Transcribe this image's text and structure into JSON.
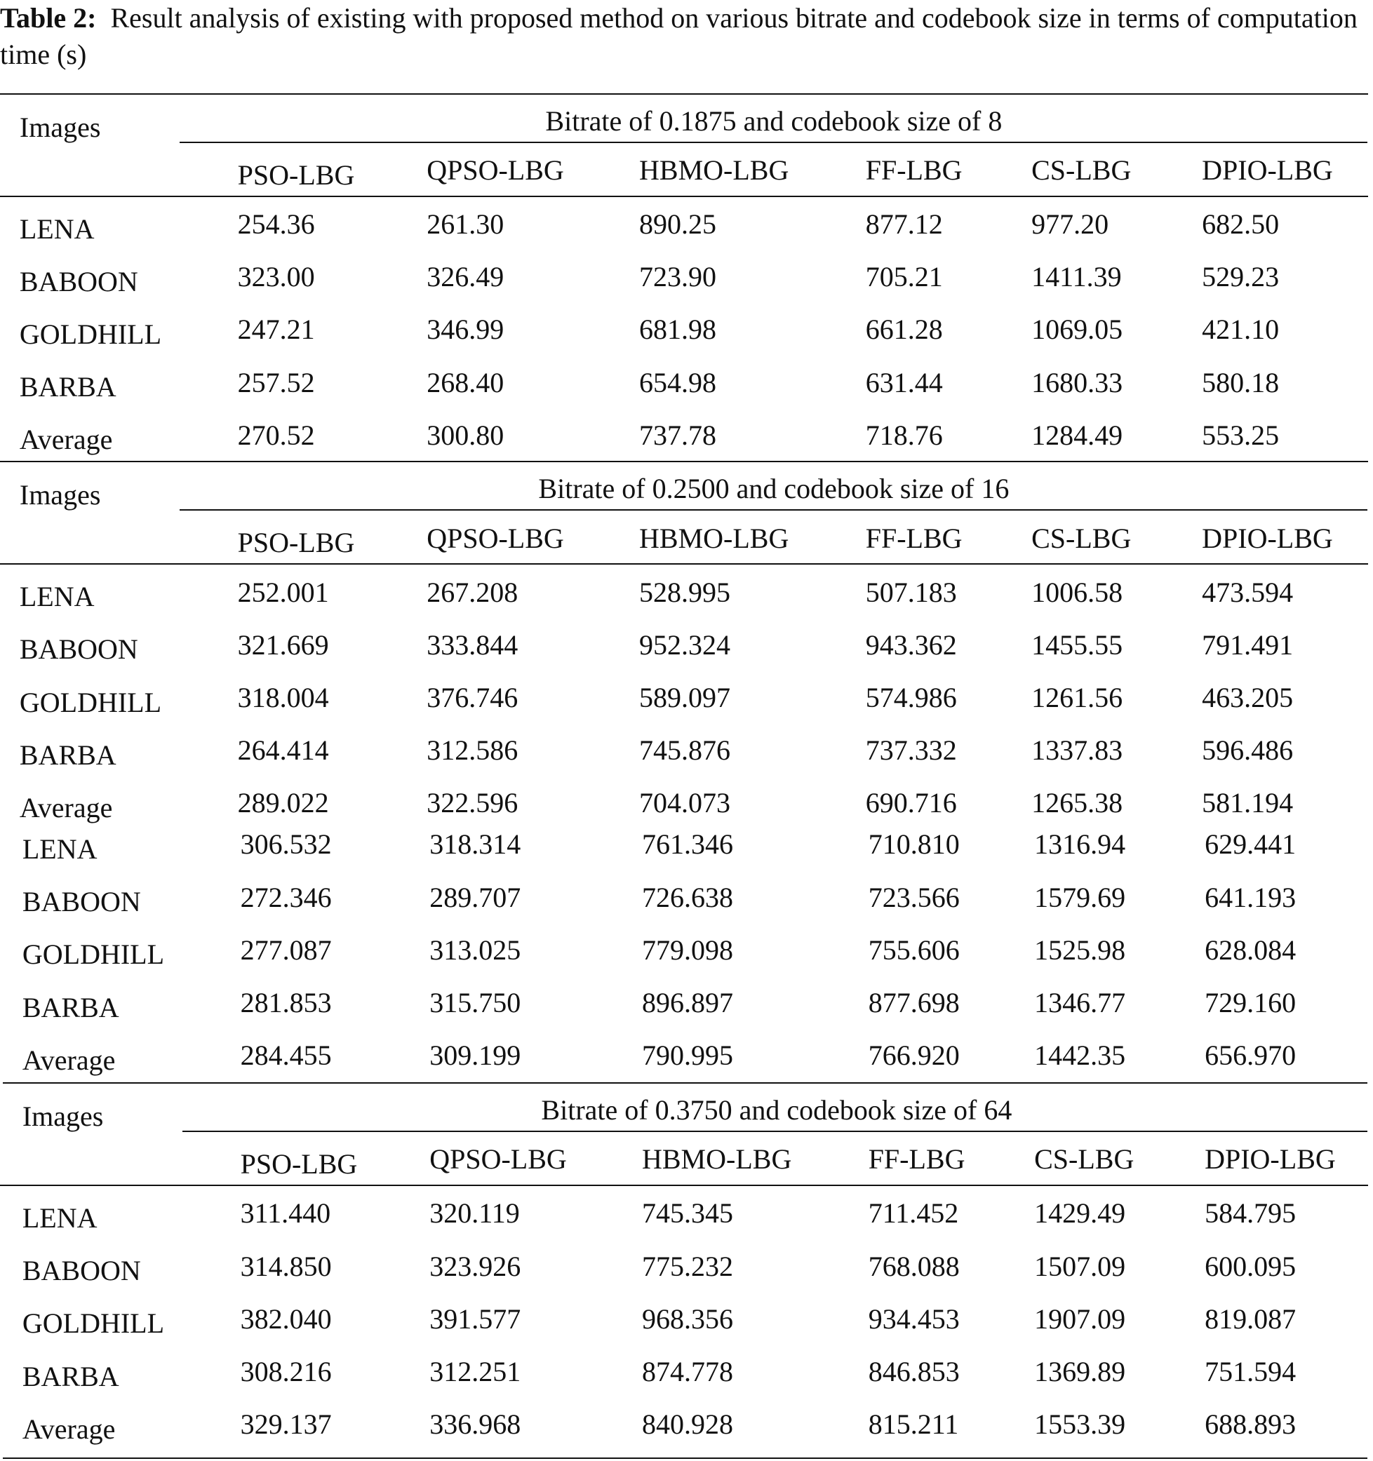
{
  "caption": {
    "label": "Table 2:",
    "text": "Result analysis of existing with proposed method on various bitrate and codebook size in terms of computation time (s)"
  },
  "sections": [
    {
      "row_header": "Images",
      "group_title": "Bitrate of 0.1875 and codebook size of 8",
      "columns": [
        "PSO-LBG",
        "QPSO-LBG",
        "HBMO-LBG",
        "FF-LBG",
        "CS-LBG",
        "DPIO-LBG"
      ],
      "rows": [
        [
          "LENA",
          "254.36",
          "261.30",
          "890.25",
          "877.12",
          "977.20",
          "682.50"
        ],
        [
          "BABOON",
          "323.00",
          "326.49",
          "723.90",
          "705.21",
          "1411.39",
          "529.23"
        ],
        [
          "GOLDHILL",
          "247.21",
          "346.99",
          "681.98",
          "661.28",
          "1069.05",
          "421.10"
        ],
        [
          "BARBA",
          "257.52",
          "268.40",
          "654.98",
          "631.44",
          "1680.33",
          "580.18"
        ],
        [
          "Average",
          "270.52",
          "300.80",
          "737.78",
          "718.76",
          "1284.49",
          "553.25"
        ]
      ]
    },
    {
      "row_header": "Images",
      "group_title": "Bitrate of 0.2500 and codebook size of 16",
      "columns": [
        "PSO-LBG",
        "QPSO-LBG",
        "HBMO-LBG",
        "FF-LBG",
        "CS-LBG",
        "DPIO-LBG"
      ],
      "rows": [
        [
          "LENA",
          "252.001",
          "267.208",
          "528.995",
          "507.183",
          "1006.58",
          "473.594"
        ],
        [
          "BABOON",
          "321.669",
          "333.844",
          "952.324",
          "943.362",
          "1455.55",
          "791.491"
        ],
        [
          "GOLDHILL",
          "318.004",
          "376.746",
          "589.097",
          "574.986",
          "1261.56",
          "463.205"
        ],
        [
          "BARBA",
          "264.414",
          "312.586",
          "745.876",
          "737.332",
          "1337.83",
          "596.486"
        ],
        [
          "Average",
          "289.022",
          "322.596",
          "704.073",
          "690.716",
          "1265.38",
          "581.194"
        ]
      ]
    },
    {
      "rows": [
        [
          "LENA",
          "306.532",
          "318.314",
          "761.346",
          "710.810",
          "1316.94",
          "629.441"
        ],
        [
          "BABOON",
          "272.346",
          "289.707",
          "726.638",
          "723.566",
          "1579.69",
          "641.193"
        ],
        [
          "GOLDHILL",
          "277.087",
          "313.025",
          "779.098",
          "755.606",
          "1525.98",
          "628.084"
        ],
        [
          "BARBA",
          "281.853",
          "315.750",
          "896.897",
          "877.698",
          "1346.77",
          "729.160"
        ],
        [
          "Average",
          "284.455",
          "309.199",
          "790.995",
          "766.920",
          "1442.35",
          "656.970"
        ]
      ]
    },
    {
      "row_header": "Images",
      "group_title": "Bitrate of 0.3750 and codebook size of 64",
      "columns": [
        "PSO-LBG",
        "QPSO-LBG",
        "HBMO-LBG",
        "FF-LBG",
        "CS-LBG",
        "DPIO-LBG"
      ],
      "rows": [
        [
          "LENA",
          "311.440",
          "320.119",
          "745.345",
          "711.452",
          "1429.49",
          "584.795"
        ],
        [
          "BABOON",
          "314.850",
          "323.926",
          "775.232",
          "768.088",
          "1507.09",
          "600.095"
        ],
        [
          "GOLDHILL",
          "382.040",
          "391.577",
          "968.356",
          "934.453",
          "1907.09",
          "819.087"
        ],
        [
          "BARBA",
          "308.216",
          "312.251",
          "874.778",
          "846.853",
          "1369.89",
          "751.594"
        ],
        [
          "Average",
          "329.137",
          "336.968",
          "840.928",
          "815.211",
          "1553.39",
          "688.893"
        ]
      ]
    }
  ]
}
